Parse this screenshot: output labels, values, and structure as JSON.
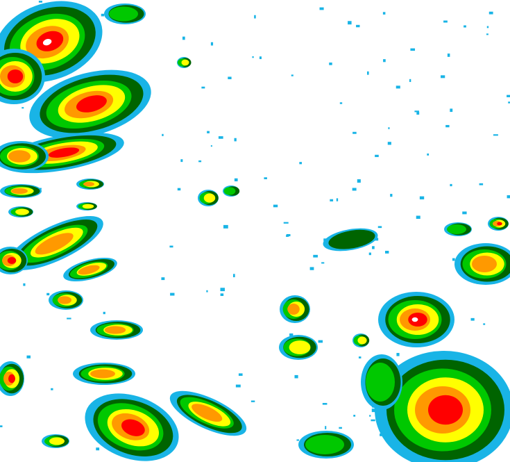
{
  "radar": {
    "background": "#ffffff",
    "palette": [
      "#19b4e6",
      "#006400",
      "#00c800",
      "#ffff00",
      "#ff9900",
      "#ff0000",
      "#ffffff"
    ]
  }
}
